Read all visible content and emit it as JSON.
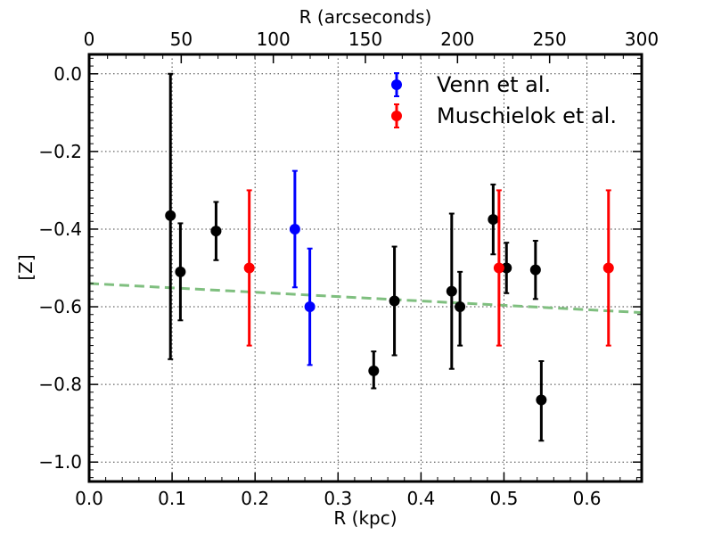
{
  "chart_data": {
    "type": "scatter",
    "xlabel": "R (kpc)",
    "ylabel": "[Z]",
    "top_xlabel": "R (arcseconds)",
    "xlim": [
      0.0,
      0.666
    ],
    "ylim": [
      -1.05,
      0.05
    ],
    "top_xlim": [
      0,
      300
    ],
    "x_ticks": [
      "0.0",
      "0.1",
      "0.2",
      "0.3",
      "0.4",
      "0.5",
      "0.6"
    ],
    "y_ticks": [
      "0.0",
      "−0.2",
      "−0.4",
      "−0.6",
      "−0.8",
      "−1.0"
    ],
    "top_x_ticks": [
      "0",
      "50",
      "100",
      "150",
      "200",
      "250",
      "300"
    ],
    "grid": true,
    "legend_position": "top-right",
    "series": [
      {
        "color": "#000000",
        "points": [
          {
            "x": 0.098,
            "y": -0.365,
            "err_low": 0.37,
            "err_high": 0.365
          },
          {
            "x": 0.11,
            "y": -0.51,
            "err_low": 0.125,
            "err_high": 0.125
          },
          {
            "x": 0.153,
            "y": -0.405,
            "err_low": 0.075,
            "err_high": 0.075
          },
          {
            "x": 0.343,
            "y": -0.765,
            "err_low": 0.045,
            "err_high": 0.05
          },
          {
            "x": 0.368,
            "y": -0.585,
            "err_low": 0.14,
            "err_high": 0.14
          },
          {
            "x": 0.437,
            "y": -0.56,
            "err_low": 0.2,
            "err_high": 0.2
          },
          {
            "x": 0.447,
            "y": -0.6,
            "err_low": 0.1,
            "err_high": 0.09
          },
          {
            "x": 0.487,
            "y": -0.375,
            "err_low": 0.09,
            "err_high": 0.09
          },
          {
            "x": 0.503,
            "y": -0.5,
            "err_low": 0.065,
            "err_high": 0.065
          },
          {
            "x": 0.538,
            "y": -0.505,
            "err_low": 0.075,
            "err_high": 0.075
          },
          {
            "x": 0.545,
            "y": -0.84,
            "err_low": 0.105,
            "err_high": 0.1
          }
        ]
      },
      {
        "name": "Venn et al.",
        "color": "#0000ff",
        "points": [
          {
            "x": 0.248,
            "y": -0.4,
            "err_low": 0.15,
            "err_high": 0.15
          },
          {
            "x": 0.266,
            "y": -0.6,
            "err_low": 0.15,
            "err_high": 0.15
          }
        ]
      },
      {
        "name": "Muschielok et al.",
        "color": "#ff0000",
        "points": [
          {
            "x": 0.193,
            "y": -0.5,
            "err_low": 0.2,
            "err_high": 0.2
          },
          {
            "x": 0.494,
            "y": -0.5,
            "err_low": 0.2,
            "err_high": 0.2
          },
          {
            "x": 0.626,
            "y": -0.5,
            "err_low": 0.2,
            "err_high": 0.2
          }
        ]
      }
    ],
    "fit_line": {
      "color": "#7fbf7f",
      "style": "dashed",
      "x": [
        0.0,
        0.666
      ],
      "y": [
        -0.54,
        -0.615
      ]
    }
  }
}
